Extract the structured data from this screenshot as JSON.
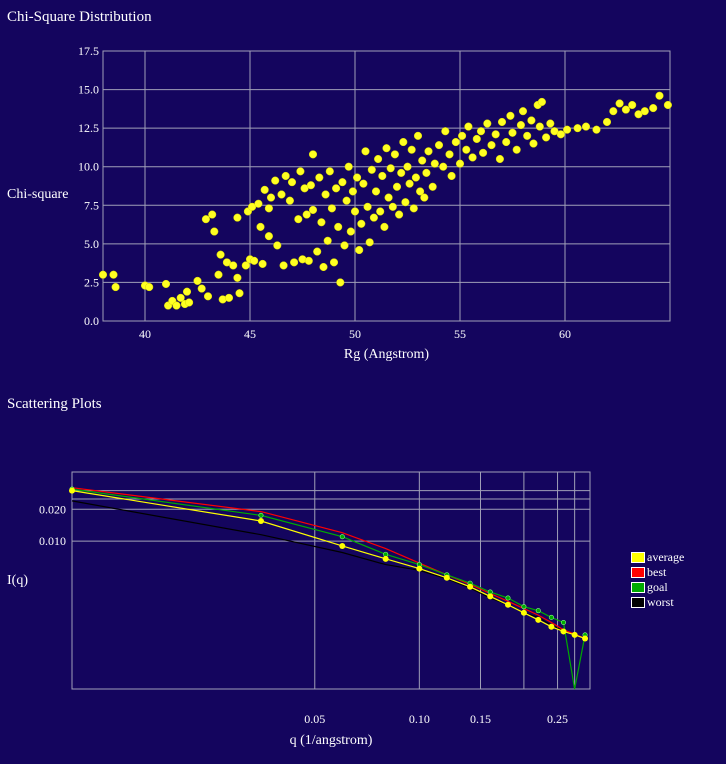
{
  "titles": {
    "chi": "Chi-Square Distribution",
    "scatter": "Scattering Plots"
  },
  "colors": {
    "background": "#14055e",
    "grid": "#a0a0b8",
    "points": "#ffff22",
    "average": "#ffff00",
    "best": "#ff0000",
    "goal": "#00aa00",
    "worst": "#000000"
  },
  "chart_data": [
    {
      "type": "scatter",
      "title": "Chi-Square Distribution",
      "xlabel": "Rg (Angstrom)",
      "ylabel": "Chi-square",
      "xlim": [
        38,
        65
      ],
      "ylim": [
        0,
        17.5
      ],
      "xticks": [
        40,
        45,
        50,
        55,
        60
      ],
      "yticks": [
        0.0,
        2.5,
        5.0,
        7.5,
        10.0,
        12.5,
        15.0,
        17.5
      ],
      "ytick_labels": [
        "0.0",
        "2.5",
        "5.0",
        "7.5",
        "10.0",
        "12.5",
        "15.0",
        "17.5"
      ],
      "grid": true,
      "points": [
        [
          38.0,
          3.0
        ],
        [
          38.5,
          3.0
        ],
        [
          38.6,
          2.2
        ],
        [
          40.0,
          2.3
        ],
        [
          40.2,
          2.2
        ],
        [
          41.0,
          2.4
        ],
        [
          41.1,
          1.0
        ],
        [
          41.3,
          1.3
        ],
        [
          41.5,
          1.0
        ],
        [
          41.7,
          1.5
        ],
        [
          41.9,
          1.1
        ],
        [
          42.0,
          1.9
        ],
        [
          42.1,
          1.2
        ],
        [
          42.5,
          2.6
        ],
        [
          42.7,
          2.1
        ],
        [
          43.0,
          1.6
        ],
        [
          42.9,
          6.6
        ],
        [
          43.2,
          6.9
        ],
        [
          43.3,
          5.8
        ],
        [
          43.5,
          3.0
        ],
        [
          43.6,
          4.3
        ],
        [
          43.7,
          1.4
        ],
        [
          43.9,
          3.8
        ],
        [
          44.0,
          1.5
        ],
        [
          44.2,
          3.6
        ],
        [
          44.4,
          2.8
        ],
        [
          44.5,
          1.8
        ],
        [
          44.4,
          6.7
        ],
        [
          44.8,
          3.6
        ],
        [
          44.9,
          7.1
        ],
        [
          45.0,
          4.0
        ],
        [
          45.1,
          7.4
        ],
        [
          45.2,
          3.9
        ],
        [
          45.4,
          7.6
        ],
        [
          45.5,
          6.1
        ],
        [
          45.6,
          3.7
        ],
        [
          45.7,
          8.5
        ],
        [
          45.9,
          7.3
        ],
        [
          46.0,
          8.0
        ],
        [
          45.9,
          5.5
        ],
        [
          46.2,
          9.1
        ],
        [
          46.3,
          4.9
        ],
        [
          46.5,
          8.2
        ],
        [
          46.6,
          3.6
        ],
        [
          46.7,
          9.4
        ],
        [
          46.9,
          7.8
        ],
        [
          47.0,
          9.0
        ],
        [
          47.1,
          3.8
        ],
        [
          47.3,
          6.6
        ],
        [
          47.4,
          9.7
        ],
        [
          47.5,
          4.0
        ],
        [
          47.6,
          8.6
        ],
        [
          47.7,
          6.9
        ],
        [
          47.8,
          3.9
        ],
        [
          47.9,
          8.8
        ],
        [
          48.0,
          7.2
        ],
        [
          48.0,
          10.8
        ],
        [
          48.2,
          4.5
        ],
        [
          48.3,
          9.3
        ],
        [
          48.4,
          6.4
        ],
        [
          48.5,
          3.5
        ],
        [
          48.6,
          8.2
        ],
        [
          48.7,
          5.2
        ],
        [
          48.8,
          9.7
        ],
        [
          48.9,
          7.3
        ],
        [
          49.0,
          3.8
        ],
        [
          49.1,
          8.6
        ],
        [
          49.2,
          6.1
        ],
        [
          49.3,
          2.5
        ],
        [
          49.4,
          9.0
        ],
        [
          49.5,
          4.9
        ],
        [
          49.6,
          7.8
        ],
        [
          49.7,
          10.0
        ],
        [
          49.8,
          5.8
        ],
        [
          49.9,
          8.4
        ],
        [
          50.0,
          7.1
        ],
        [
          50.1,
          9.3
        ],
        [
          50.2,
          4.6
        ],
        [
          50.3,
          6.3
        ],
        [
          50.4,
          8.9
        ],
        [
          50.5,
          11.0
        ],
        [
          50.6,
          7.4
        ],
        [
          50.7,
          5.1
        ],
        [
          50.8,
          9.8
        ],
        [
          50.9,
          6.7
        ],
        [
          51.0,
          8.4
        ],
        [
          51.1,
          10.5
        ],
        [
          51.2,
          7.1
        ],
        [
          51.3,
          9.4
        ],
        [
          51.4,
          6.1
        ],
        [
          51.5,
          11.2
        ],
        [
          51.6,
          8.0
        ],
        [
          51.7,
          9.9
        ],
        [
          51.8,
          7.4
        ],
        [
          51.9,
          10.8
        ],
        [
          52.0,
          8.7
        ],
        [
          52.1,
          6.9
        ],
        [
          52.2,
          9.6
        ],
        [
          52.3,
          11.6
        ],
        [
          52.4,
          7.7
        ],
        [
          52.5,
          10.0
        ],
        [
          52.6,
          8.9
        ],
        [
          52.7,
          11.1
        ],
        [
          52.8,
          7.3
        ],
        [
          52.9,
          9.3
        ],
        [
          53.0,
          12.0
        ],
        [
          53.1,
          8.4
        ],
        [
          53.2,
          10.4
        ],
        [
          53.3,
          8.0
        ],
        [
          53.4,
          9.6
        ],
        [
          53.5,
          11.0
        ],
        [
          53.7,
          8.7
        ],
        [
          53.8,
          10.2
        ],
        [
          54.0,
          11.4
        ],
        [
          54.2,
          10.0
        ],
        [
          54.3,
          12.3
        ],
        [
          54.5,
          10.8
        ],
        [
          54.6,
          9.4
        ],
        [
          54.8,
          11.6
        ],
        [
          55.0,
          10.2
        ],
        [
          55.1,
          12.0
        ],
        [
          55.3,
          11.1
        ],
        [
          55.4,
          12.6
        ],
        [
          55.6,
          10.6
        ],
        [
          55.8,
          11.8
        ],
        [
          56.0,
          12.3
        ],
        [
          56.1,
          10.9
        ],
        [
          56.3,
          12.8
        ],
        [
          56.5,
          11.4
        ],
        [
          56.7,
          12.1
        ],
        [
          56.9,
          10.5
        ],
        [
          57.0,
          12.9
        ],
        [
          57.2,
          11.6
        ],
        [
          57.4,
          13.3
        ],
        [
          57.5,
          12.2
        ],
        [
          57.7,
          11.1
        ],
        [
          57.9,
          12.7
        ],
        [
          58.0,
          13.6
        ],
        [
          58.2,
          12.0
        ],
        [
          58.4,
          13.0
        ],
        [
          58.5,
          11.5
        ],
        [
          58.7,
          14.0
        ],
        [
          58.8,
          12.6
        ],
        [
          58.9,
          14.2
        ],
        [
          59.1,
          11.9
        ],
        [
          59.3,
          12.8
        ],
        [
          59.5,
          12.3
        ],
        [
          59.8,
          12.1
        ],
        [
          60.1,
          12.4
        ],
        [
          60.6,
          12.5
        ],
        [
          61.0,
          12.6
        ],
        [
          61.5,
          12.4
        ],
        [
          62.0,
          12.9
        ],
        [
          62.3,
          13.6
        ],
        [
          62.6,
          14.1
        ],
        [
          62.9,
          13.7
        ],
        [
          63.2,
          14.0
        ],
        [
          63.5,
          13.4
        ],
        [
          63.8,
          13.6
        ],
        [
          64.2,
          13.8
        ],
        [
          64.5,
          14.6
        ],
        [
          64.9,
          14.0
        ]
      ]
    },
    {
      "type": "line",
      "title": "Scattering Plots",
      "xlabel": "q (1/angstrom)",
      "ylabel": "I(q)",
      "xscale": "log",
      "yscale": "log",
      "xticks": [
        0.05,
        0.1,
        0.15,
        0.25
      ],
      "xtick_labels": [
        "0.05",
        "0.10",
        "0.15",
        "0.25"
      ],
      "yticks": [
        0.02,
        0.01
      ],
      "ytick_labels": [
        "0.020",
        "0.010"
      ],
      "grid": true,
      "legend_position": "right",
      "series": [
        {
          "name": "average",
          "x": [
            0.01,
            0.035,
            0.06,
            0.08,
            0.1,
            0.12,
            0.14,
            0.16,
            0.18,
            0.2,
            0.22,
            0.24,
            0.26,
            0.28,
            0.3
          ],
          "y": [
            0.03,
            0.0155,
            0.009,
            0.0068,
            0.0055,
            0.0045,
            0.0037,
            0.003,
            0.0025,
            0.0021,
            0.0018,
            0.00155,
            0.0014,
            0.0013,
            0.0012
          ]
        },
        {
          "name": "best",
          "x": [
            0.01,
            0.035,
            0.06,
            0.08,
            0.1,
            0.12,
            0.14,
            0.16,
            0.18,
            0.2,
            0.22,
            0.24,
            0.26,
            0.28,
            0.3
          ],
          "y": [
            0.032,
            0.019,
            0.012,
            0.0085,
            0.0062,
            0.0048,
            0.0039,
            0.0032,
            0.0027,
            0.0023,
            0.002,
            0.0017,
            0.00145,
            0.00132,
            0.0012
          ]
        },
        {
          "name": "goal",
          "x": [
            0.01,
            0.035,
            0.06,
            0.08,
            0.1,
            0.12,
            0.14,
            0.16,
            0.18,
            0.2,
            0.22,
            0.24,
            0.26,
            0.28,
            0.3
          ],
          "y": [
            0.031,
            0.0175,
            0.011,
            0.0075,
            0.006,
            0.0048,
            0.004,
            0.0033,
            0.0029,
            0.0024,
            0.0022,
            0.0019,
            0.0017,
            1e-06,
            0.0013
          ]
        },
        {
          "name": "worst",
          "x": [
            0.01,
            0.035,
            0.06,
            0.08,
            0.1,
            0.12,
            0.14,
            0.16,
            0.18,
            0.2,
            0.22,
            0.24,
            0.26,
            0.28,
            0.3
          ],
          "y": [
            0.024,
            0.0115,
            0.0078,
            0.006,
            0.0053,
            0.0044,
            0.0036,
            0.0029,
            0.0025,
            0.0021,
            0.0019,
            0.0016,
            0.00142,
            0.00131,
            0.0012
          ]
        }
      ]
    }
  ]
}
